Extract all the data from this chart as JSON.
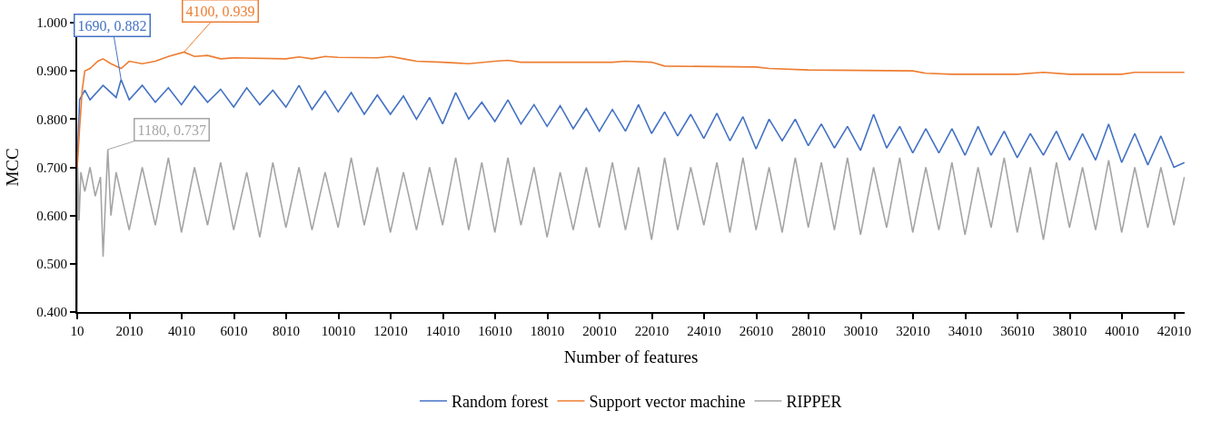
{
  "chart_data": {
    "type": "line",
    "xlabel": "Number of features",
    "ylabel": "MCC",
    "xlim": [
      10,
      42410
    ],
    "xticks": [
      10,
      2010,
      4010,
      6010,
      8010,
      10010,
      12010,
      14010,
      16010,
      18010,
      20010,
      22010,
      24010,
      26010,
      28010,
      30010,
      32010,
      34010,
      36010,
      38010,
      40010,
      42010
    ],
    "ylim": [
      0.4,
      1.0
    ],
    "yticks": [
      {
        "value": 0.4,
        "label": "0.400"
      },
      {
        "value": 0.5,
        "label": "0.500"
      },
      {
        "value": 0.6,
        "label": "0.600"
      },
      {
        "value": 0.7,
        "label": "0.700"
      },
      {
        "value": 0.8,
        "label": "0.800"
      },
      {
        "value": 0.9,
        "label": "0.900"
      },
      {
        "value": 1.0,
        "label": "1.000"
      }
    ],
    "legend": "bottom",
    "marker": "none",
    "line_style": "solid",
    "series": [
      {
        "name": "Random forest",
        "color": "#4472c4",
        "x": [
          10,
          100,
          300,
          500,
          1000,
          1500,
          1690,
          2000,
          2500,
          3000,
          3500,
          4000,
          4500,
          5000,
          5500,
          6000,
          6500,
          7000,
          7500,
          8000,
          8500,
          9000,
          9500,
          10000,
          10500,
          11000,
          11500,
          12000,
          12500,
          13000,
          13500,
          14000,
          14500,
          15000,
          15500,
          16000,
          16500,
          17000,
          17500,
          18000,
          18500,
          19000,
          19500,
          20000,
          20500,
          21000,
          21500,
          22000,
          22500,
          23000,
          23500,
          24000,
          24500,
          25000,
          25500,
          26000,
          26500,
          27000,
          27500,
          28000,
          28500,
          29000,
          29500,
          30000,
          30500,
          31000,
          31500,
          32000,
          32500,
          33000,
          33500,
          34000,
          34500,
          35000,
          35500,
          36000,
          36500,
          37000,
          37500,
          38000,
          38500,
          39000,
          39500,
          40000,
          40500,
          41000,
          41500,
          42000,
          42400
        ],
        "values": [
          0.7,
          0.84,
          0.86,
          0.84,
          0.87,
          0.845,
          0.882,
          0.84,
          0.87,
          0.835,
          0.865,
          0.83,
          0.868,
          0.835,
          0.862,
          0.825,
          0.865,
          0.83,
          0.86,
          0.825,
          0.87,
          0.82,
          0.858,
          0.815,
          0.855,
          0.81,
          0.85,
          0.81,
          0.848,
          0.8,
          0.845,
          0.79,
          0.855,
          0.8,
          0.835,
          0.795,
          0.84,
          0.79,
          0.83,
          0.785,
          0.828,
          0.78,
          0.822,
          0.775,
          0.82,
          0.775,
          0.83,
          0.77,
          0.815,
          0.765,
          0.81,
          0.76,
          0.812,
          0.755,
          0.805,
          0.738,
          0.8,
          0.755,
          0.8,
          0.745,
          0.79,
          0.74,
          0.785,
          0.735,
          0.81,
          0.74,
          0.785,
          0.73,
          0.78,
          0.73,
          0.78,
          0.725,
          0.785,
          0.725,
          0.775,
          0.72,
          0.77,
          0.725,
          0.775,
          0.715,
          0.77,
          0.715,
          0.79,
          0.71,
          0.77,
          0.705,
          0.765,
          0.7,
          0.71
        ]
      },
      {
        "name": "Support vector machine",
        "color": "#ed7d31",
        "x": [
          10,
          100,
          200,
          300,
          500,
          800,
          1000,
          1300,
          1690,
          2000,
          2500,
          3000,
          3500,
          4100,
          4500,
          5000,
          5500,
          6000,
          8000,
          8500,
          9000,
          9500,
          10000,
          11500,
          12000,
          12500,
          13000,
          14000,
          15000,
          16000,
          16500,
          17000,
          20500,
          21000,
          22000,
          22500,
          26000,
          26500,
          28000,
          32000,
          32500,
          33500,
          36000,
          37000,
          38000,
          40000,
          40500,
          42400
        ],
        "values": [
          0.7,
          0.78,
          0.86,
          0.9,
          0.905,
          0.92,
          0.925,
          0.915,
          0.905,
          0.92,
          0.915,
          0.92,
          0.93,
          0.939,
          0.93,
          0.932,
          0.925,
          0.927,
          0.925,
          0.929,
          0.925,
          0.93,
          0.928,
          0.927,
          0.93,
          0.925,
          0.92,
          0.918,
          0.915,
          0.92,
          0.922,
          0.918,
          0.918,
          0.92,
          0.918,
          0.91,
          0.908,
          0.905,
          0.902,
          0.9,
          0.895,
          0.893,
          0.893,
          0.897,
          0.893,
          0.893,
          0.897,
          0.897
        ]
      },
      {
        "name": "RIPPER",
        "color": "#a5a5a5",
        "x": [
          10,
          30,
          80,
          150,
          300,
          500,
          700,
          900,
          1000,
          1180,
          1300,
          1500,
          2000,
          2500,
          3000,
          3500,
          4000,
          4500,
          5000,
          5500,
          6000,
          6500,
          7000,
          7500,
          8000,
          8500,
          9000,
          9500,
          10000,
          10500,
          11000,
          11500,
          12000,
          12500,
          13000,
          13500,
          14000,
          14500,
          15000,
          15500,
          16000,
          16500,
          17000,
          17500,
          18000,
          18500,
          19000,
          19500,
          20000,
          20500,
          21000,
          21500,
          22000,
          22500,
          23000,
          23500,
          24000,
          24500,
          25000,
          25500,
          26000,
          26500,
          27000,
          27500,
          28000,
          28500,
          29000,
          29500,
          30000,
          30500,
          31000,
          31500,
          32000,
          32500,
          33000,
          33500,
          34000,
          34500,
          35000,
          35500,
          36000,
          36500,
          37000,
          37500,
          38000,
          38500,
          39000,
          39500,
          40000,
          40500,
          41000,
          41500,
          42000,
          42400
        ],
        "values": [
          0.4,
          0.7,
          0.59,
          0.69,
          0.65,
          0.7,
          0.64,
          0.68,
          0.515,
          0.737,
          0.6,
          0.69,
          0.57,
          0.7,
          0.58,
          0.72,
          0.565,
          0.7,
          0.58,
          0.71,
          0.57,
          0.69,
          0.555,
          0.71,
          0.575,
          0.7,
          0.57,
          0.69,
          0.575,
          0.72,
          0.58,
          0.7,
          0.565,
          0.69,
          0.57,
          0.7,
          0.58,
          0.72,
          0.57,
          0.71,
          0.565,
          0.72,
          0.58,
          0.7,
          0.555,
          0.69,
          0.57,
          0.7,
          0.575,
          0.71,
          0.57,
          0.7,
          0.55,
          0.72,
          0.57,
          0.7,
          0.58,
          0.71,
          0.565,
          0.72,
          0.57,
          0.7,
          0.565,
          0.72,
          0.575,
          0.71,
          0.57,
          0.72,
          0.56,
          0.7,
          0.575,
          0.72,
          0.565,
          0.7,
          0.57,
          0.71,
          0.56,
          0.7,
          0.575,
          0.72,
          0.565,
          0.7,
          0.55,
          0.71,
          0.575,
          0.7,
          0.57,
          0.715,
          0.565,
          0.7,
          0.575,
          0.7,
          0.58,
          0.68
        ]
      }
    ],
    "annotations": [
      {
        "text": "1690, 0.882",
        "x": 1690,
        "y": 0.882
      },
      {
        "text": "4100, 0.939",
        "x": 4100,
        "y": 0.939
      },
      {
        "text": "1180, 0.737",
        "x": 1180,
        "y": 0.737
      }
    ]
  }
}
